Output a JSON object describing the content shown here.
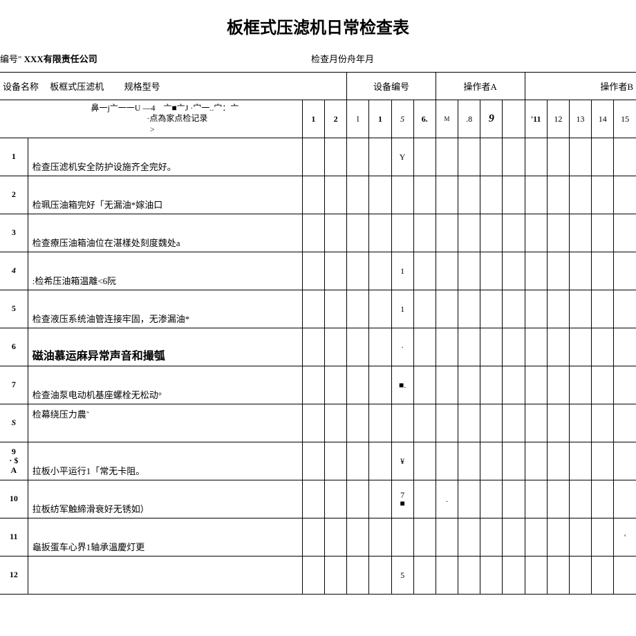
{
  "title": "板框式压滤机日常检查表",
  "header": {
    "left_prefix": "编号\"",
    "company": "XXX有限责任公司",
    "right": "检查月份舟年月"
  },
  "info_row": {
    "device_name_label": "设备名称",
    "device_name_value": "板框式压滤机",
    "spec_label": "规格型号",
    "device_number_label": "设备编号",
    "operator_a_label": "操作者A",
    "operator_b_label": "操作者B"
  },
  "col_header": {
    "left_label": "　　　鼻一j亠一一U —4　亠■亠J ·宀一..宀：亠\n　　　　　　·点為家点检记录\n>",
    "days": [
      "1",
      "2",
      "l",
      "1",
      "5",
      "6.",
      "M",
      ".8",
      "9",
      "",
      "'11",
      "12",
      "13",
      "14",
      "15"
    ]
  },
  "rows": [
    {
      "num": "1",
      "desc": "检查压滤机安全防护设施齐全完好。",
      "marks": {
        "4": "Y"
      }
    },
    {
      "num": "2",
      "desc": "检珮压油箱完好「无漏油*嫁油口",
      "marks": {}
    },
    {
      "num": "3",
      "desc": "检查療压油箱油位在湛樣处刻度魏处a",
      "marks": {}
    },
    {
      "num": "4",
      "desc": ":检希压油箱温離<6阮",
      "marks": {
        "4": "1"
      },
      "num_style": "italic"
    },
    {
      "num": "5",
      "desc": "检查液压系统油管连接牢固，无渗漏油*",
      "marks": {
        "4": "1"
      }
    },
    {
      "num": "6",
      "desc": "磁油慕运麻异常声音和撮瓠",
      "marks": {
        "4": "·"
      },
      "desc_class": "row6-text"
    },
    {
      "num": "7",
      "desc": "检查油泵电动机基座螺栓无松动°",
      "marks": {
        "4": "■."
      }
    },
    {
      "num": "S",
      "desc": "检幕绕压力農˜",
      "marks": {},
      "num_style": "italic",
      "valign": "top"
    },
    {
      "num": "9\n· $\nA",
      "desc": "拉板小平运行1「常无卡阻。",
      "marks": {
        "4": "¥"
      }
    },
    {
      "num": "10",
      "desc": "拉板纺军触締滑衰好无锈如）",
      "marks": {
        "4": "7\n■",
        "6": "."
      }
    },
    {
      "num": "11",
      "desc": "龜扳蛋车心界1轴承溫慶灯更",
      "marks": {
        "14": "'"
      }
    },
    {
      "num": "12",
      "desc": "",
      "marks": {
        "4": "5"
      }
    }
  ],
  "colors": {
    "border": "#000000",
    "background": "#ffffff",
    "text": "#000000"
  }
}
